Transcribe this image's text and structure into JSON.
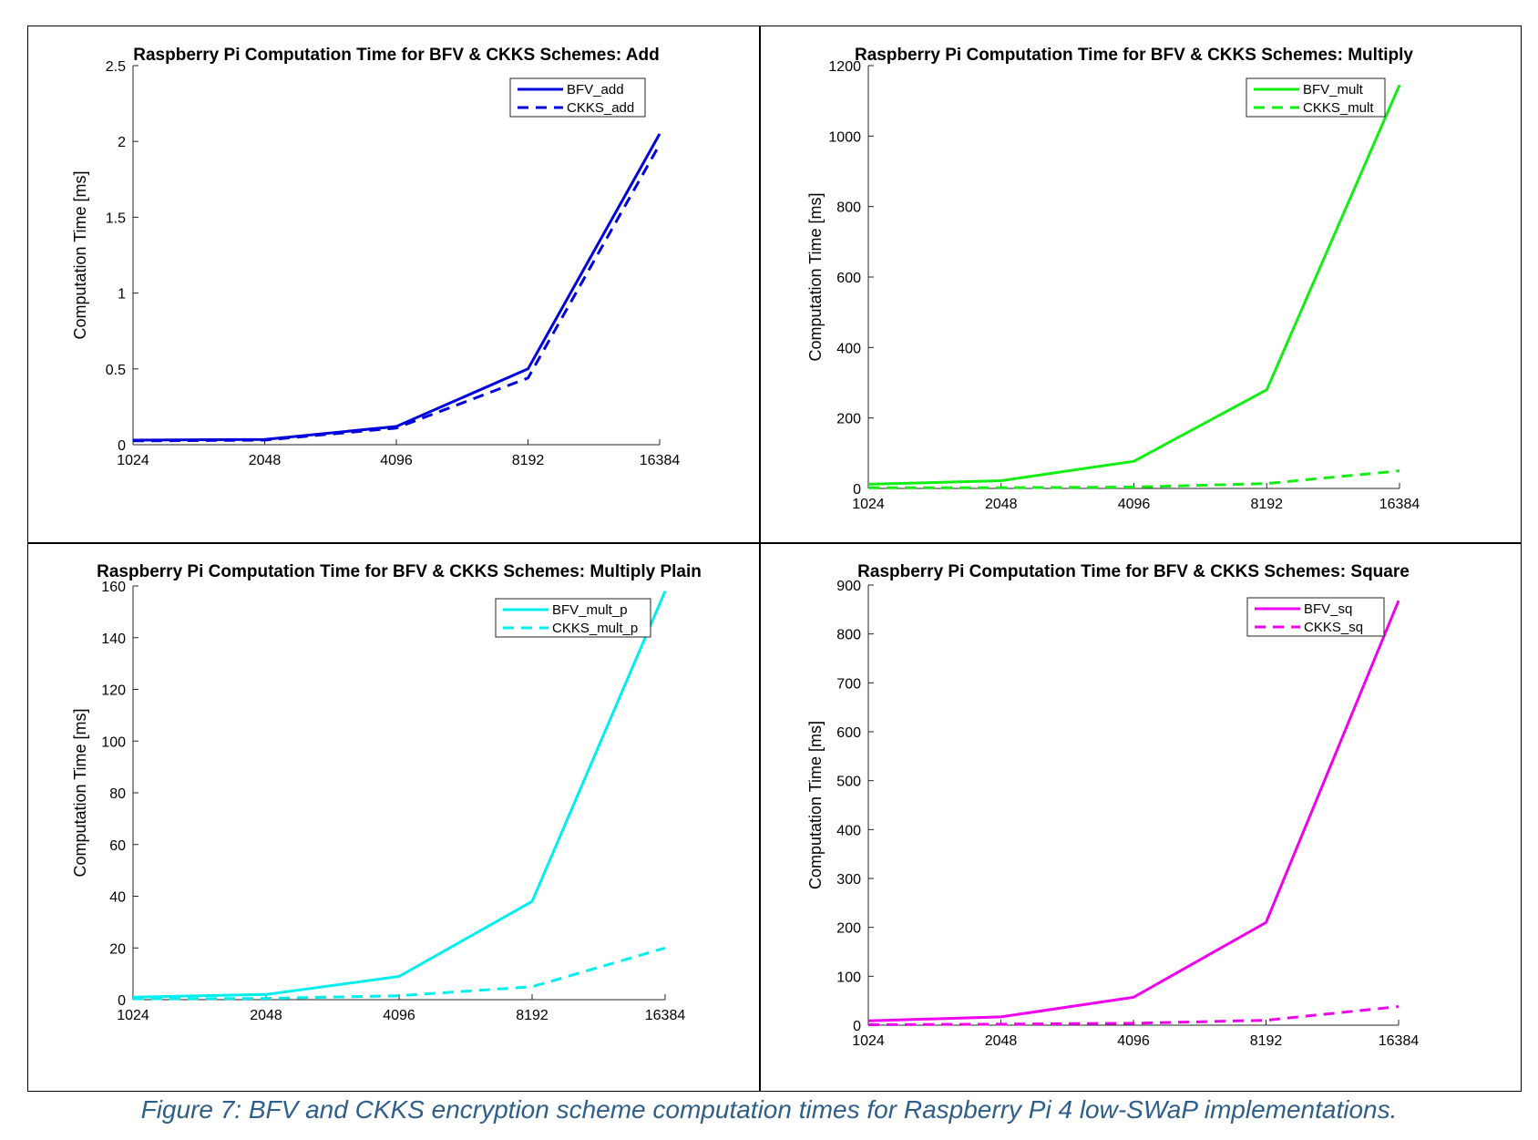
{
  "caption": "Figure 7: BFV and CKKS encryption scheme computation times for Raspberry Pi 4 low-SWaP implementations.",
  "chart_data": [
    {
      "type": "line",
      "title": "Raspberry Pi Computation Time for BFV & CKKS Schemes: Add",
      "xlabel": "",
      "ylabel": "Computation Time [ms]",
      "categories": [
        "1024",
        "2048",
        "4096",
        "8192",
        "16384"
      ],
      "ylim": [
        0,
        2.5
      ],
      "yticks": [
        0,
        0.5,
        1,
        1.5,
        2,
        2.5
      ],
      "ytick_labels": [
        "0",
        "0.5",
        "1",
        "1.5",
        "2",
        "2.5"
      ],
      "legend_position": "top-right",
      "color": "#0000dd",
      "series": [
        {
          "name": "BFV_add",
          "style": "solid",
          "values": [
            0.03,
            0.035,
            0.12,
            0.5,
            2.05
          ]
        },
        {
          "name": "CKKS_add",
          "style": "dashed",
          "values": [
            0.025,
            0.03,
            0.11,
            0.44,
            1.98
          ]
        }
      ]
    },
    {
      "type": "line",
      "title": "Raspberry Pi Computation Time for BFV & CKKS Schemes: Multiply",
      "xlabel": "",
      "ylabel": "Computation Time [ms]",
      "categories": [
        "1024",
        "2048",
        "4096",
        "8192",
        "16384"
      ],
      "ylim": [
        0,
        1200
      ],
      "yticks": [
        0,
        200,
        400,
        600,
        800,
        1000,
        1200
      ],
      "ytick_labels": [
        "0",
        "200",
        "400",
        "600",
        "800",
        "1000",
        "1200"
      ],
      "legend_position": "top-right",
      "color": "#11ee11",
      "series": [
        {
          "name": "BFV_mult",
          "style": "solid",
          "values": [
            12,
            22,
            77,
            280,
            1145
          ]
        },
        {
          "name": "CKKS_mult",
          "style": "dashed",
          "values": [
            2,
            2,
            4,
            14,
            50
          ]
        }
      ]
    },
    {
      "type": "line",
      "title": "Raspberry Pi Computation Time for BFV & CKKS Schemes: Multiply Plain",
      "xlabel": "",
      "ylabel": "Computation Time [ms]",
      "categories": [
        "1024",
        "2048",
        "4096",
        "8192",
        "16384"
      ],
      "ylim": [
        0,
        160
      ],
      "yticks": [
        0,
        20,
        40,
        60,
        80,
        100,
        120,
        140,
        160
      ],
      "ytick_labels": [
        "0",
        "20",
        "40",
        "60",
        "80",
        "100",
        "120",
        "140",
        "160"
      ],
      "legend_position": "top-right",
      "color": "#00eeee",
      "series": [
        {
          "name": "BFV_mult_p",
          "style": "solid",
          "values": [
            1,
            2,
            9,
            38,
            158
          ]
        },
        {
          "name": "CKKS_mult_p",
          "style": "dashed",
          "values": [
            0.3,
            0.5,
            1.5,
            5,
            20
          ]
        }
      ]
    },
    {
      "type": "line",
      "title": "Raspberry Pi Computation Time for BFV & CKKS Schemes: Square",
      "xlabel": "",
      "ylabel": "Computation Time [ms]",
      "categories": [
        "1024",
        "2048",
        "4096",
        "8192",
        "16384"
      ],
      "ylim": [
        0,
        900
      ],
      "yticks": [
        0,
        100,
        200,
        300,
        400,
        500,
        600,
        700,
        800,
        900
      ],
      "ytick_labels": [
        "0",
        "100",
        "200",
        "300",
        "400",
        "500",
        "600",
        "700",
        "800",
        "900"
      ],
      "legend_position": "top-right",
      "color": "#ee00ee",
      "series": [
        {
          "name": "BFV_sq",
          "style": "solid",
          "values": [
            9,
            17,
            57,
            210,
            868
          ]
        },
        {
          "name": "CKKS_sq",
          "style": "dashed",
          "values": [
            1,
            2,
            4,
            10,
            38
          ]
        }
      ]
    }
  ]
}
